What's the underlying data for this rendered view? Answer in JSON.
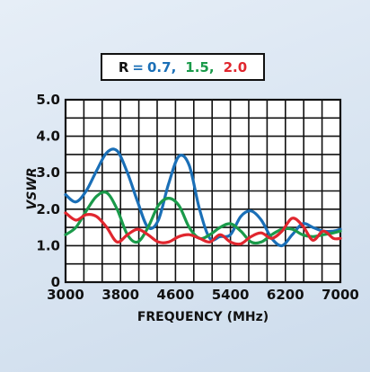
{
  "chart_data": {
    "type": "line",
    "title": "",
    "xlabel": "FREQUENCY (MHz)",
    "ylabel": "VSWR",
    "xlim": [
      3000,
      7000
    ],
    "ylim": [
      0,
      5
    ],
    "x_tick_labels": [
      "3000",
      "3800",
      "4600",
      "5400",
      "6200",
      "7000"
    ],
    "y_tick_labels": [
      "0",
      "1.0",
      "2.0",
      "3.0",
      "4.0",
      "5.0"
    ],
    "grid": true,
    "legend": {
      "placement": "top-center",
      "prefix": "R",
      "equals": "=",
      "entries": [
        "0.7,",
        "1.5,",
        "2.0"
      ]
    },
    "series": [
      {
        "name": "0.7",
        "color": "#1a6fb7",
        "x": [
          3000,
          3150,
          3300,
          3450,
          3600,
          3750,
          3900,
          4050,
          4200,
          4350,
          4500,
          4650,
          4800,
          4950,
          5100,
          5250,
          5400,
          5550,
          5700,
          5850,
          6000,
          6150,
          6300,
          6450,
          6600,
          6750,
          6900,
          7000
        ],
        "y": [
          2.4,
          2.2,
          2.5,
          3.05,
          3.55,
          3.6,
          3.0,
          2.2,
          1.5,
          1.7,
          2.7,
          3.45,
          3.2,
          2.0,
          1.2,
          1.25,
          1.3,
          1.8,
          1.95,
          1.7,
          1.2,
          1.0,
          1.3,
          1.6,
          1.5,
          1.4,
          1.4,
          1.45
        ]
      },
      {
        "name": "1.5",
        "color": "#1a9a4a",
        "x": [
          3000,
          3150,
          3300,
          3450,
          3600,
          3750,
          3900,
          4050,
          4200,
          4350,
          4500,
          4650,
          4800,
          4950,
          5100,
          5250,
          5400,
          5550,
          5700,
          5850,
          6000,
          6150,
          6300,
          6450,
          6600,
          6750,
          6900,
          7000
        ],
        "y": [
          1.3,
          1.5,
          1.95,
          2.35,
          2.45,
          2.0,
          1.3,
          1.1,
          1.5,
          2.1,
          2.3,
          2.1,
          1.5,
          1.2,
          1.3,
          1.5,
          1.6,
          1.4,
          1.1,
          1.1,
          1.3,
          1.45,
          1.45,
          1.3,
          1.25,
          1.3,
          1.35,
          1.4
        ]
      },
      {
        "name": "2.0",
        "color": "#e0262e",
        "x": [
          3000,
          3150,
          3300,
          3450,
          3600,
          3750,
          3900,
          4050,
          4200,
          4350,
          4500,
          4650,
          4800,
          4950,
          5100,
          5250,
          5400,
          5550,
          5700,
          5850,
          6000,
          6150,
          6300,
          6450,
          6600,
          6750,
          6900,
          7000
        ],
        "y": [
          1.9,
          1.7,
          1.85,
          1.8,
          1.5,
          1.1,
          1.3,
          1.45,
          1.3,
          1.1,
          1.1,
          1.25,
          1.3,
          1.2,
          1.1,
          1.3,
          1.1,
          1.05,
          1.25,
          1.35,
          1.2,
          1.4,
          1.75,
          1.55,
          1.15,
          1.4,
          1.2,
          1.2
        ]
      }
    ]
  }
}
